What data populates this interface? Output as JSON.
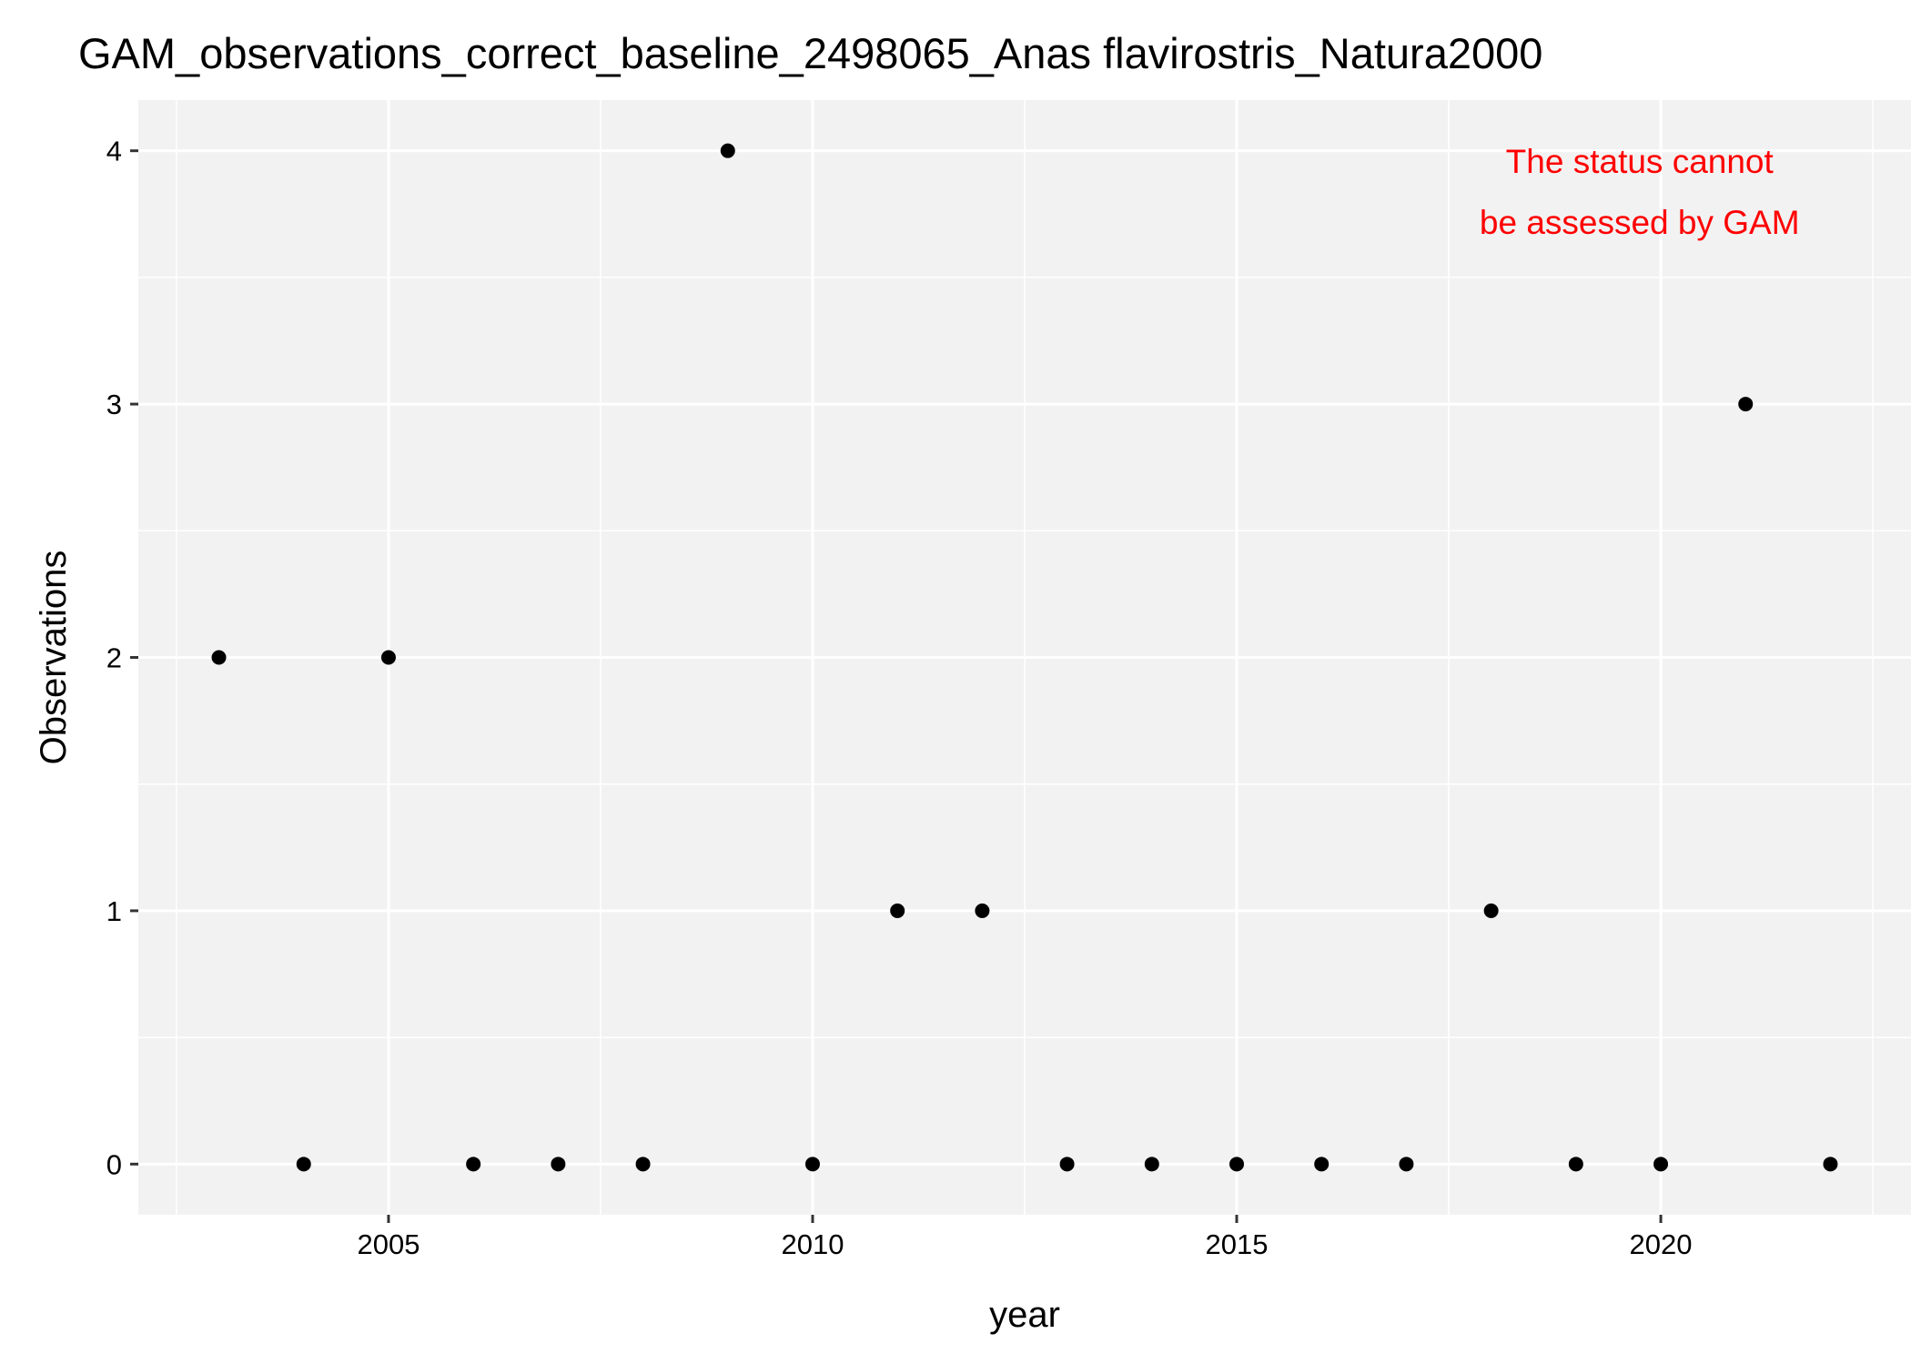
{
  "chart_data": {
    "type": "scatter",
    "title": "GAM_observations_correct_baseline_2498065_Anas flavirostris_Natura2000",
    "xlabel": "year",
    "ylabel": "Observations",
    "xlim": [
      2002.05,
      2022.95
    ],
    "ylim": [
      -0.2,
      4.2
    ],
    "x_ticks": [
      2005,
      2010,
      2015,
      2020
    ],
    "x_tick_labels": [
      "2005",
      "2010",
      "2015",
      "2020"
    ],
    "x_minor_ticks": [
      2002.5,
      2007.5,
      2012.5,
      2017.5,
      2022.5
    ],
    "y_ticks": [
      0,
      1,
      2,
      3,
      4
    ],
    "y_tick_labels": [
      "0",
      "1",
      "2",
      "3",
      "4"
    ],
    "y_minor_ticks": [
      0.5,
      1.5,
      2.5,
      3.5
    ],
    "grid": true,
    "panel_background": "#f2f2f2",
    "grid_color": "#ffffff",
    "point_color": "#000000",
    "x": [
      2003,
      2004,
      2005,
      2006,
      2007,
      2008,
      2009,
      2010,
      2011,
      2012,
      2013,
      2014,
      2015,
      2016,
      2017,
      2018,
      2019,
      2020,
      2021,
      2022
    ],
    "y": [
      2,
      0,
      2,
      0,
      0,
      0,
      4,
      0,
      1,
      1,
      0,
      0,
      0,
      0,
      0,
      1,
      0,
      0,
      3,
      0
    ],
    "annotation": {
      "lines": [
        "The status cannot",
        "be assessed by GAM"
      ],
      "color": "#ff0000",
      "placement": "top-right"
    }
  }
}
